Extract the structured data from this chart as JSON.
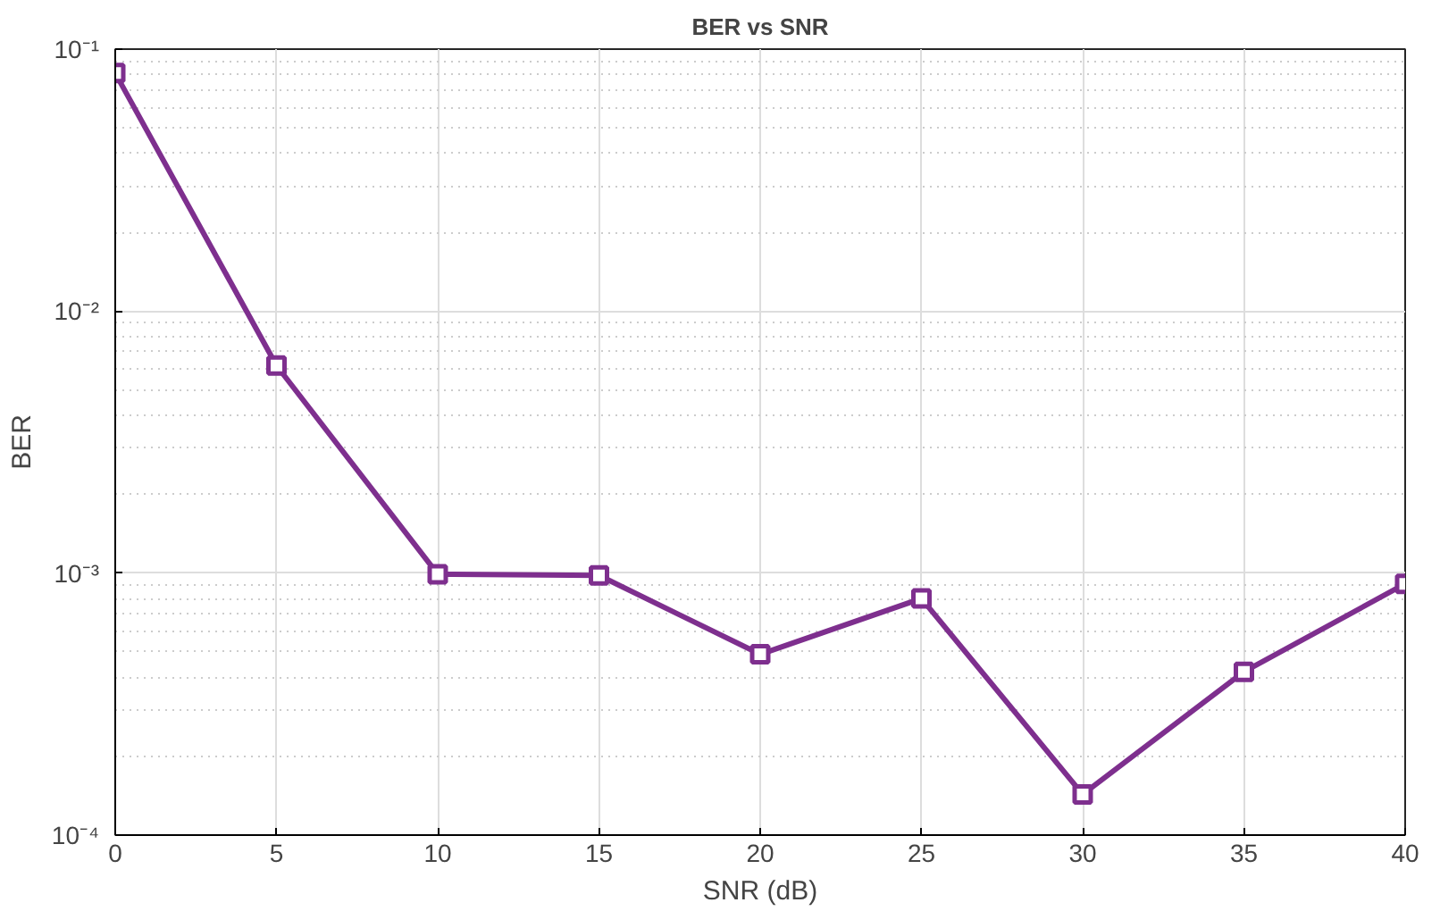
{
  "chart_data": {
    "type": "line",
    "title": "BER vs SNR",
    "xlabel": "SNR (dB)",
    "ylabel": "BER",
    "x": [
      0,
      5,
      10,
      15,
      20,
      25,
      30,
      35,
      40
    ],
    "series": [
      {
        "color": "#7e2f8e",
        "values": [
          0.081,
          0.0062,
          0.00099,
          0.00098,
          0.00049,
          0.0008,
          0.000143,
          0.00042,
          0.00091
        ]
      }
    ],
    "xlim": [
      0,
      40
    ],
    "xticks": [
      0,
      5,
      10,
      15,
      20,
      25,
      30,
      35,
      40
    ],
    "ylim": [
      0.0001,
      0.1
    ],
    "yticks": [
      {
        "value": 0.0001,
        "label": "10⁻⁴"
      },
      {
        "value": 0.001,
        "label": "10⁻³"
      },
      {
        "value": 0.01,
        "label": "10⁻²"
      },
      {
        "value": 0.1,
        "label": "10⁻¹"
      }
    ],
    "log": "y",
    "grid": true,
    "marker": "square",
    "line_style": "solid"
  }
}
